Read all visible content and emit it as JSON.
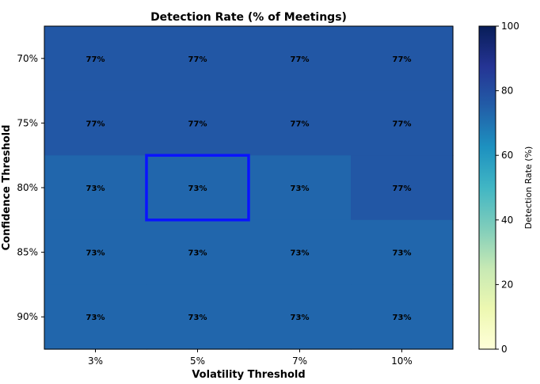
{
  "chart_data": {
    "type": "heatmap",
    "title": "Detection Rate (% of Meetings)",
    "xlabel": "Volatility Threshold",
    "ylabel": "Confidence Threshold",
    "x_categories": [
      "3%",
      "5%",
      "7%",
      "10%"
    ],
    "y_categories": [
      "70%",
      "75%",
      "80%",
      "85%",
      "90%"
    ],
    "values": [
      [
        77,
        77,
        77,
        77
      ],
      [
        77,
        77,
        77,
        77
      ],
      [
        73,
        73,
        73,
        77
      ],
      [
        73,
        73,
        73,
        73
      ],
      [
        73,
        73,
        73,
        73
      ]
    ],
    "cell_labels": [
      [
        "77%",
        "77%",
        "77%",
        "77%"
      ],
      [
        "77%",
        "77%",
        "77%",
        "77%"
      ],
      [
        "73%",
        "73%",
        "73%",
        "77%"
      ],
      [
        "73%",
        "73%",
        "73%",
        "73%"
      ],
      [
        "73%",
        "73%",
        "73%",
        "73%"
      ]
    ],
    "highlight_cell": {
      "row": 2,
      "col": 1,
      "color": "#0a14ff"
    },
    "colorbar": {
      "label": "Detection Rate (%)",
      "range": [
        0,
        100
      ],
      "ticks": [
        "0",
        "20",
        "40",
        "60",
        "80",
        "100"
      ],
      "colormap": "YlGnBu",
      "colors": [
        "#ffffd9",
        "#edf8b1",
        "#c7e9b4",
        "#7fcdbb",
        "#41b6c4",
        "#1d91c0",
        "#225ea8",
        "#253494",
        "#081d58"
      ]
    }
  }
}
